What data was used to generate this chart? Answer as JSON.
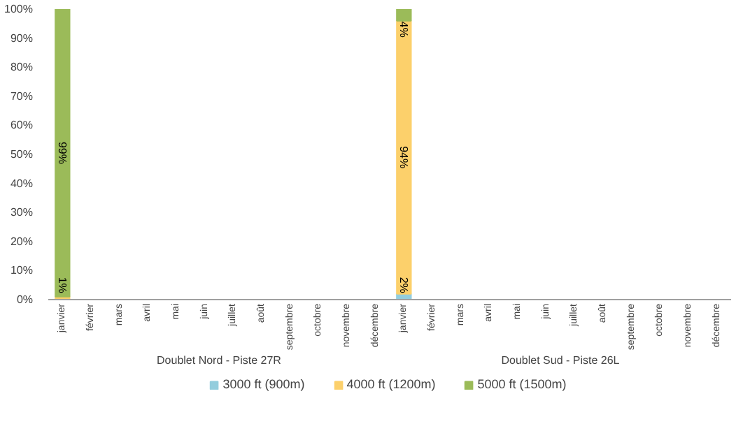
{
  "chart_data": {
    "type": "bar",
    "stacked": true,
    "categories": [
      "janvier",
      "février",
      "mars",
      "avril",
      "mai",
      "juin",
      "juillet",
      "août",
      "septembre",
      "octobre",
      "novembre",
      "décembre",
      "janvier",
      "février",
      "mars",
      "avril",
      "mai",
      "juin",
      "juillet",
      "août",
      "septembre",
      "octobre",
      "novembre",
      "décembre"
    ],
    "annotations": [
      "Doublet Nord - Piste 27R",
      "Doublet Sud - Piste 26L"
    ],
    "series": [
      {
        "name": "3000 ft (900m)",
        "color": "#93cddd",
        "values": [
          0,
          null,
          null,
          null,
          null,
          null,
          null,
          null,
          null,
          null,
          null,
          null,
          2,
          null,
          null,
          null,
          null,
          null,
          null,
          null,
          null,
          null,
          null,
          null
        ],
        "value_labels": [
          null,
          null,
          null,
          null,
          null,
          null,
          null,
          null,
          null,
          null,
          null,
          null,
          "2%",
          null,
          null,
          null,
          null,
          null,
          null,
          null,
          null,
          null,
          null,
          null
        ]
      },
      {
        "name": "4000 ft (1200m)",
        "color": "#fcd06b",
        "values": [
          1,
          null,
          null,
          null,
          null,
          null,
          null,
          null,
          null,
          null,
          null,
          null,
          94,
          null,
          null,
          null,
          null,
          null,
          null,
          null,
          null,
          null,
          null,
          null
        ],
        "value_labels": [
          "1%",
          null,
          null,
          null,
          null,
          null,
          null,
          null,
          null,
          null,
          null,
          null,
          "94%",
          null,
          null,
          null,
          null,
          null,
          null,
          null,
          null,
          null,
          null,
          null
        ]
      },
      {
        "name": "5000 ft (1500m)",
        "color": "#9bbb59",
        "values": [
          99,
          null,
          null,
          null,
          null,
          null,
          null,
          null,
          null,
          null,
          null,
          null,
          4,
          null,
          null,
          null,
          null,
          null,
          null,
          null,
          null,
          null,
          null,
          null
        ],
        "value_labels": [
          "99%",
          null,
          null,
          null,
          null,
          null,
          null,
          null,
          null,
          null,
          null,
          null,
          "4%",
          null,
          null,
          null,
          null,
          null,
          null,
          null,
          null,
          null,
          null,
          null
        ]
      }
    ],
    "ylim": [
      0,
      100
    ],
    "yticks": [
      {
        "value": 0,
        "label": "0%"
      },
      {
        "value": 10,
        "label": "10%"
      },
      {
        "value": 20,
        "label": "20%"
      },
      {
        "value": 30,
        "label": "30%"
      },
      {
        "value": 40,
        "label": "40%"
      },
      {
        "value": 50,
        "label": "50%"
      },
      {
        "value": 60,
        "label": "60%"
      },
      {
        "value": 70,
        "label": "70%"
      },
      {
        "value": 80,
        "label": "80%"
      },
      {
        "value": 90,
        "label": "90%"
      },
      {
        "value": 100,
        "label": "100%"
      }
    ],
    "grid": false,
    "legend": "bottom"
  }
}
